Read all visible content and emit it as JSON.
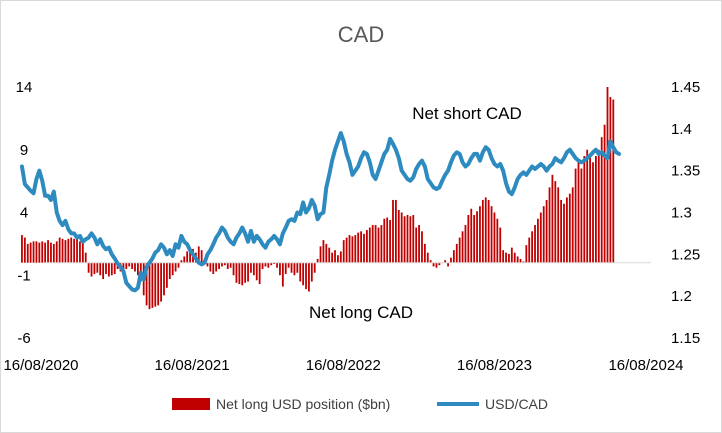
{
  "chart_data": {
    "type": "bar+line",
    "title": "CAD",
    "x_ticks": [
      "16/08/2020",
      "16/08/2021",
      "16/08/2022",
      "16/08/2023",
      "16/08/2024"
    ],
    "y_left": {
      "ticks": [
        "14",
        "9",
        "4",
        "-1",
        "-6"
      ],
      "range": [
        -6,
        14
      ]
    },
    "y_right": {
      "ticks": [
        "1.45",
        "1.4",
        "1.35",
        "1.3",
        "1.25",
        "1.2",
        "1.15"
      ],
      "range": [
        1.15,
        1.45
      ]
    },
    "annotations": [
      {
        "text": "Net short CAD"
      },
      {
        "text": "Net long CAD"
      }
    ],
    "series": [
      {
        "name": "Net long USD position ($bn)",
        "type": "bar",
        "axis": "left",
        "color": "#c00000",
        "x_start": "2020-07-01",
        "x_step_days": 7,
        "values": [
          2.2,
          2.0,
          1.5,
          1.6,
          1.7,
          1.7,
          1.6,
          1.7,
          1.6,
          1.8,
          1.6,
          1.5,
          1.7,
          2.0,
          1.9,
          1.8,
          1.9,
          2.0,
          1.9,
          1.9,
          1.7,
          1.8,
          0.8,
          -0.8,
          -1.1,
          -0.9,
          -0.8,
          -1.0,
          -1.3,
          -0.9,
          -1.1,
          -1.0,
          -0.9,
          -0.5,
          -0.7,
          -0.6,
          -0.5,
          -0.3,
          -0.5,
          -0.7,
          -1.0,
          -1.5,
          -2.6,
          -3.4,
          -3.7,
          -3.6,
          -3.5,
          -3.4,
          -3.1,
          -2.6,
          -2.0,
          -1.3,
          -1.0,
          -0.7,
          -0.4,
          0.2,
          0.5,
          0.9,
          1.0,
          1.1,
          0.8,
          1.3,
          1.0,
          0.2,
          -0.3,
          -0.7,
          -0.9,
          -0.7,
          -0.5,
          -0.3,
          -0.2,
          -0.5,
          -0.4,
          -1.0,
          -1.6,
          -1.7,
          -1.8,
          -1.6,
          -1.5,
          -0.8,
          -1.0,
          -1.4,
          -1.7,
          -0.5,
          -0.3,
          -0.4,
          -0.2,
          -0.1,
          -0.4,
          -1.0,
          -1.9,
          -0.9,
          -0.4,
          -0.8,
          -1.0,
          -0.8,
          -1.5,
          -1.8,
          -2.1,
          -2.3,
          -1.5,
          -0.8,
          0.3,
          1.3,
          1.8,
          1.5,
          1.2,
          0.8,
          1.0,
          0.6,
          0.9,
          1.8,
          2.0,
          2.2,
          2.1,
          2.2,
          2.4,
          2.5,
          2.3,
          2.6,
          2.8,
          3.0,
          3.0,
          2.8,
          3.0,
          3.5,
          3.6,
          3.4,
          5.0,
          5.0,
          4.2,
          4.0,
          3.7,
          3.8,
          3.7,
          3.8,
          2.8,
          3.0,
          2.5,
          1.5,
          0.8,
          0.2,
          -0.3,
          -0.4,
          -0.2,
          0.0,
          0.2,
          -0.3,
          0.4,
          1.0,
          1.5,
          2.0,
          2.5,
          3.0,
          3.8,
          4.3,
          3.8,
          4.1,
          4.5,
          5.0,
          5.2,
          5.0,
          4.5,
          4.0,
          3.5,
          2.8,
          1.0,
          0.8,
          0.7,
          1.2,
          0.8,
          0.5,
          0.3,
          0.1,
          1.4,
          2.0,
          2.5,
          3.0,
          3.5,
          4.0,
          4.5,
          5.0,
          6.0,
          7.0,
          6.5,
          6.0,
          5.0,
          4.7,
          5.2,
          5.5,
          6.0,
          7.5,
          8.0,
          7.5,
          8.5,
          9.0,
          8.5,
          8.0,
          8.5,
          9.0,
          10.0,
          11.0,
          14.0,
          13.2,
          13.0
        ]
      },
      {
        "name": "USD/CAD",
        "type": "line",
        "axis": "right",
        "color": "#2e8bc0",
        "x_start": "2020-07-01",
        "x_step_days": 7,
        "values": [
          1.355,
          1.334,
          1.33,
          1.326,
          1.323,
          1.34,
          1.35,
          1.338,
          1.32,
          1.32,
          1.315,
          1.325,
          1.3,
          1.29,
          1.285,
          1.29,
          1.28,
          1.275,
          1.275,
          1.27,
          1.272,
          1.265,
          1.268,
          1.27,
          1.275,
          1.27,
          1.262,
          1.268,
          1.26,
          1.256,
          1.258,
          1.25,
          1.245,
          1.239,
          1.235,
          1.23,
          1.216,
          1.212,
          1.208,
          1.207,
          1.21,
          1.228,
          1.22,
          1.235,
          1.24,
          1.245,
          1.252,
          1.255,
          1.262,
          1.258,
          1.25,
          1.255,
          1.248,
          1.262,
          1.258,
          1.272,
          1.265,
          1.262,
          1.255,
          1.25,
          1.245,
          1.24,
          1.238,
          1.24,
          1.25,
          1.255,
          1.262,
          1.27,
          1.275,
          1.282,
          1.278,
          1.27,
          1.265,
          1.262,
          1.27,
          1.275,
          1.282,
          1.275,
          1.265,
          1.278,
          1.265,
          1.272,
          1.268,
          1.262,
          1.258,
          1.265,
          1.268,
          1.272,
          1.268,
          1.262,
          1.275,
          1.282,
          1.29,
          1.292,
          1.29,
          1.3,
          1.298,
          1.312,
          1.3,
          1.305,
          1.315,
          1.308,
          1.292,
          1.298,
          1.3,
          1.33,
          1.345,
          1.362,
          1.375,
          1.385,
          1.395,
          1.385,
          1.37,
          1.36,
          1.345,
          1.35,
          1.355,
          1.365,
          1.372,
          1.37,
          1.36,
          1.345,
          1.34,
          1.35,
          1.36,
          1.37,
          1.375,
          1.388,
          1.382,
          1.375,
          1.365,
          1.35,
          1.345,
          1.34,
          1.338,
          1.342,
          1.352,
          1.358,
          1.362,
          1.355,
          1.34,
          1.335,
          1.33,
          1.328,
          1.33,
          1.338,
          1.345,
          1.35,
          1.36,
          1.368,
          1.372,
          1.37,
          1.36,
          1.355,
          1.358,
          1.365,
          1.37,
          1.37,
          1.362,
          1.372,
          1.378,
          1.375,
          1.365,
          1.358,
          1.355,
          1.358,
          1.35,
          1.335,
          1.325,
          1.322,
          1.33,
          1.34,
          1.345,
          1.348,
          1.345,
          1.35,
          1.355,
          1.352,
          1.355,
          1.358,
          1.355,
          1.35,
          1.355,
          1.358,
          1.365,
          1.362,
          1.36,
          1.365,
          1.372,
          1.375,
          1.37,
          1.365,
          1.362,
          1.36,
          1.362,
          1.365,
          1.368,
          1.372,
          1.375,
          1.37,
          1.372,
          1.368,
          1.365,
          1.385,
          1.378,
          1.372,
          1.37
        ]
      }
    ],
    "legend": {
      "placement": "bottom"
    },
    "grid": false
  }
}
